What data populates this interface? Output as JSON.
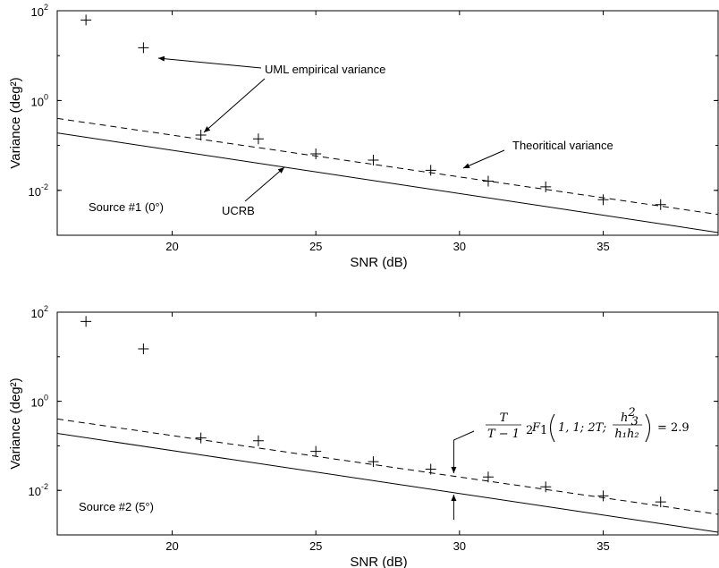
{
  "chart_data": [
    {
      "type": "line",
      "xlabel": "SNR (dB)",
      "ylabel": "Variance (deg²)",
      "xlim": [
        16,
        39
      ],
      "ylim": [
        0.001,
        100
      ],
      "yscale": "log",
      "grid": false,
      "x_ticks": [
        "20",
        "25",
        "30",
        "35"
      ],
      "y_ticks": [
        {
          "base": "10",
          "exp": "2"
        },
        {
          "base": "10",
          "exp": "0"
        },
        {
          "base": "10",
          "exp": "-2"
        }
      ],
      "panel_label": "Source #1 (0°)",
      "series": [
        {
          "style": "markers-plus",
          "x": [
            17,
            19,
            21,
            23,
            25,
            27,
            29,
            31,
            33,
            35,
            37
          ],
          "y": [
            62,
            15,
            0.17,
            0.14,
            0.065,
            0.047,
            0.028,
            0.016,
            0.012,
            0.0062,
            0.0048
          ]
        },
        {
          "style": "dashed",
          "x": [
            16,
            39
          ],
          "y": [
            0.4,
            0.0029
          ]
        },
        {
          "style": "solid",
          "x": [
            16,
            39
          ],
          "y": [
            0.19,
            0.00115
          ]
        }
      ],
      "annotations": [
        {
          "text": "UML empirical variance"
        },
        {
          "text": "Theoritical variance"
        },
        {
          "text": "UCRB"
        }
      ]
    },
    {
      "type": "line",
      "xlabel": "SNR (dB)",
      "ylabel": "Variance (deg²)",
      "xlim": [
        16,
        39
      ],
      "ylim": [
        0.001,
        100
      ],
      "yscale": "log",
      "grid": false,
      "x_ticks": [
        "20",
        "25",
        "30",
        "35"
      ],
      "y_ticks": [
        {
          "base": "10",
          "exp": "2"
        },
        {
          "base": "10",
          "exp": "0"
        },
        {
          "base": "10",
          "exp": "-2"
        }
      ],
      "panel_label": "Source #2 (5°)",
      "series": [
        {
          "style": "markers-plus",
          "x": [
            17,
            19,
            21,
            23,
            25,
            27,
            29,
            31,
            33,
            35,
            37
          ],
          "y": [
            62,
            15,
            0.15,
            0.13,
            0.075,
            0.044,
            0.03,
            0.02,
            0.012,
            0.0075,
            0.0055
          ]
        },
        {
          "style": "dashed",
          "x": [
            16,
            39
          ],
          "y": [
            0.4,
            0.0029
          ]
        },
        {
          "style": "solid",
          "x": [
            16,
            39
          ],
          "y": [
            0.19,
            0.00115
          ]
        }
      ],
      "formula": {
        "frac_num": "T",
        "frac_den": "T − 1",
        "func_pre": "2",
        "func": "F",
        "func_sub": "1",
        "args": "1, 1; 2T;",
        "h_num": "h",
        "h_num_sub": "3",
        "h_num_sup": "2",
        "h_den": "h₁h₂",
        "equals": "= 2.9"
      }
    }
  ]
}
